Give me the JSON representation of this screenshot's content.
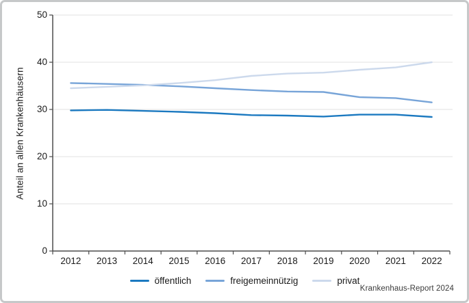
{
  "chart_data": {
    "type": "line",
    "x": [
      "2012",
      "2013",
      "2014",
      "2015",
      "2016",
      "2017",
      "2018",
      "2019",
      "2020",
      "2021",
      "2022"
    ],
    "series": [
      {
        "name": "öffentlich",
        "color": "#1b79c0",
        "values": [
          29.8,
          29.9,
          29.7,
          29.5,
          29.2,
          28.8,
          28.7,
          28.5,
          28.9,
          28.9,
          28.4
        ]
      },
      {
        "name": "freigemeinnützig",
        "color": "#77a4d8",
        "values": [
          35.6,
          35.4,
          35.2,
          34.9,
          34.5,
          34.1,
          33.8,
          33.7,
          32.6,
          32.4,
          31.5
        ]
      },
      {
        "name": "privat",
        "color": "#ccd9ec",
        "values": [
          34.5,
          34.8,
          35.1,
          35.6,
          36.2,
          37.1,
          37.6,
          37.8,
          38.4,
          38.9,
          40.0
        ]
      }
    ],
    "ylabel": "Anteil an allen Krankenhäusern",
    "ylim": [
      0,
      50
    ],
    "yticks": [
      0,
      10,
      20,
      30,
      40,
      50
    ],
    "grid": true,
    "legend_position": "bottom",
    "source": "Krankenhaus-Report 2024"
  },
  "colors": {
    "grid": "#e2e2e2",
    "axis": "#4c4c4c",
    "tick_text": "#1a1a1a",
    "frame_border": "#c6c8c9",
    "background": "#ffffff"
  }
}
